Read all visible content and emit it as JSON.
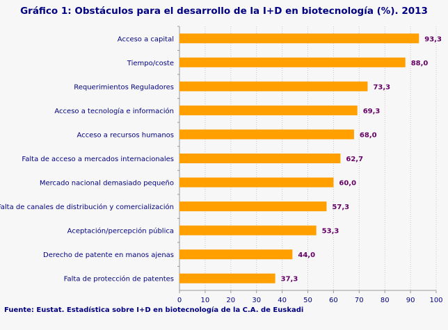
{
  "chart_data": {
    "type": "bar",
    "orientation": "horizontal",
    "title": "Gráfico 1: Obstáculos para el desarrollo de la I+D en biotecnología (%). 2013",
    "source": "Fuente: Eustat. Estadística sobre I+D en biotecnología de la C.A. de Euskadi",
    "categories": [
      "Acceso a capital",
      "Tiempo/coste",
      "Requerimientos Reguladores",
      "Acceso a tecnología e información",
      "Acceso a recursos humanos",
      "Falta de acceso a mercados internacionales",
      "Mercado nacional demasiado pequeño",
      "Falta de canales de distribución y comercialización",
      "Aceptación/percepción pública",
      "Derecho de patente en manos ajenas",
      "Falta de protección de patentes"
    ],
    "values": [
      93.3,
      88.0,
      73.3,
      69.3,
      68.0,
      62.7,
      60.0,
      57.3,
      53.3,
      44.0,
      37.3
    ],
    "value_labels": [
      "93,3",
      "88,0",
      "73,3",
      "69,3",
      "68,0",
      "62,7",
      "60,0",
      "57,3",
      "53,3",
      "44,0",
      "37,3"
    ],
    "xlim": [
      0,
      100
    ],
    "xticks": [
      "0",
      "10",
      "20",
      "30",
      "40",
      "50",
      "60",
      "70",
      "80",
      "90",
      "100"
    ],
    "grid": "vertical dotted",
    "colors": {
      "bar": "#ff9f00",
      "category_text": "#000080",
      "value_text": "#660066",
      "title": "#000080"
    }
  }
}
